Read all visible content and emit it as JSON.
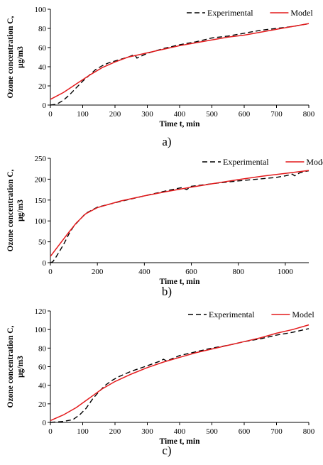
{
  "chart_data": [
    {
      "type": "line",
      "panel_label": "a)",
      "xlabel": "Time t, min",
      "ylabel": "Ozone concentration C, μg/m3",
      "xlim": [
        0,
        800
      ],
      "ylim": [
        0,
        100
      ],
      "xticks": [
        0,
        100,
        200,
        300,
        400,
        500,
        600,
        700,
        800
      ],
      "yticks": [
        0,
        20,
        40,
        60,
        80,
        100
      ],
      "grid": false,
      "legend_position": "top-right",
      "series": [
        {
          "name": "Experimental",
          "style": "dashed",
          "color": "#000000",
          "x": [
            0,
            20,
            40,
            60,
            80,
            100,
            120,
            140,
            160,
            180,
            200,
            220,
            240,
            255,
            262,
            268,
            280,
            300,
            350,
            400,
            450,
            500,
            550,
            600,
            650,
            700,
            750,
            800
          ],
          "y": [
            0,
            1,
            5,
            11,
            18,
            25,
            31,
            37,
            41,
            44,
            46,
            48,
            50,
            52,
            52,
            49,
            51,
            54,
            59,
            63,
            66,
            70,
            72,
            75,
            78,
            80,
            82,
            85
          ]
        },
        {
          "name": "Model",
          "style": "solid",
          "color": "#e41a1c",
          "x": [
            0,
            40,
            80,
            120,
            160,
            200,
            240,
            280,
            320,
            360,
            400,
            450,
            500,
            550,
            600,
            650,
            700,
            750,
            800
          ],
          "y": [
            6,
            13,
            22,
            31,
            39,
            45,
            50,
            53,
            56,
            59,
            62,
            65,
            68,
            71,
            73,
            76,
            79,
            82,
            85
          ]
        }
      ]
    },
    {
      "type": "line",
      "panel_label": "b)",
      "xlabel": "Time t, min",
      "ylabel": "Ozone concentration C, μg/m3",
      "xlim": [
        0,
        1100
      ],
      "ylim": [
        0,
        250
      ],
      "xticks": [
        0,
        200,
        400,
        600,
        800,
        1000
      ],
      "yticks": [
        0,
        50,
        100,
        150,
        200,
        250
      ],
      "grid": false,
      "legend_position": "top-right",
      "series": [
        {
          "name": "Experimental",
          "style": "dashed",
          "color": "#000000",
          "x": [
            0,
            10,
            20,
            40,
            60,
            80,
            100,
            150,
            200,
            300,
            400,
            500,
            560,
            580,
            600,
            700,
            800,
            900,
            960,
            1000,
            1030,
            1040,
            1060,
            1080,
            1100
          ],
          "y": [
            0,
            2,
            10,
            28,
            48,
            70,
            88,
            118,
            133,
            147,
            160,
            173,
            180,
            175,
            183,
            190,
            196,
            201,
            204,
            208,
            212,
            208,
            215,
            218,
            220
          ]
        },
        {
          "name": "Model",
          "style": "solid",
          "color": "#e41a1c",
          "x": [
            0,
            20,
            50,
            80,
            110,
            150,
            200,
            300,
            400,
            500,
            600,
            700,
            800,
            900,
            1000,
            1100
          ],
          "y": [
            15,
            30,
            52,
            74,
            95,
            117,
            132,
            148,
            160,
            171,
            181,
            190,
            199,
            207,
            214,
            221
          ]
        }
      ]
    },
    {
      "type": "line",
      "panel_label": "c)",
      "xlabel": "Time t, min",
      "ylabel": "Ozone concentration C, μg/m3",
      "xlim": [
        0,
        800
      ],
      "ylim": [
        0,
        120
      ],
      "xticks": [
        0,
        100,
        200,
        300,
        400,
        500,
        600,
        700,
        800
      ],
      "yticks": [
        0,
        20,
        40,
        60,
        80,
        100,
        120
      ],
      "grid": false,
      "legend_position": "top-right",
      "series": [
        {
          "name": "Experimental",
          "style": "dashed",
          "color": "#000000",
          "x": [
            0,
            40,
            70,
            90,
            110,
            130,
            150,
            170,
            190,
            210,
            250,
            300,
            340,
            350,
            360,
            400,
            450,
            500,
            550,
            600,
            650,
            700,
            750,
            800
          ],
          "y": [
            0,
            1,
            3,
            8,
            15,
            25,
            33,
            40,
            45,
            49,
            55,
            61,
            66,
            68,
            66,
            72,
            76,
            80,
            83,
            87,
            90,
            94,
            97,
            101
          ]
        },
        {
          "name": "Model",
          "style": "solid",
          "color": "#e41a1c",
          "x": [
            0,
            40,
            80,
            120,
            160,
            200,
            250,
            300,
            350,
            400,
            450,
            500,
            550,
            600,
            650,
            700,
            750,
            800
          ],
          "y": [
            2,
            8,
            16,
            26,
            36,
            44,
            52,
            59,
            65,
            70,
            75,
            79,
            83,
            87,
            91,
            96,
            100,
            105
          ]
        }
      ]
    }
  ]
}
